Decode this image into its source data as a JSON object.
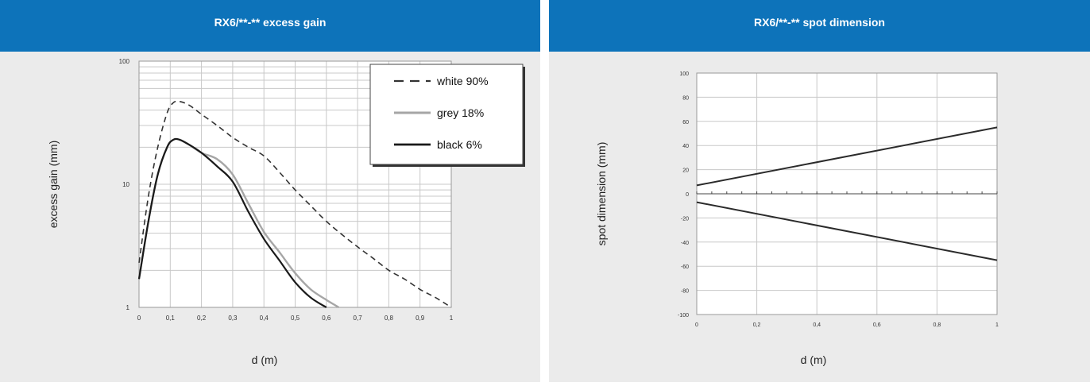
{
  "colors": {
    "header_bg": "#0d73ba",
    "header_text": "#ffffff",
    "panel_bg": "#ebebeb",
    "plot_bg": "#ffffff",
    "grid": "#c8c8c8",
    "white_90": "#333333",
    "grey_18": "#a6a6a6",
    "black_6": "#1a1a1a"
  },
  "chart_data": [
    {
      "type": "line",
      "title": "RX6/**-** excess gain",
      "xlabel": "d (m)",
      "ylabel": "excess gain (mm)",
      "yscale": "log",
      "xlim": [
        0,
        1
      ],
      "ylim": [
        1,
        100
      ],
      "x_ticks": [
        "0",
        "0,1",
        "0,2",
        "0,3",
        "0,4",
        "0,5",
        "0,6",
        "0,7",
        "0,8",
        "0,9",
        "1"
      ],
      "y_ticks": [
        "1",
        "10",
        "100"
      ],
      "legend_position": "top-right",
      "series": [
        {
          "name": "white 90%",
          "style": "dashed",
          "x": [
            0,
            0.03,
            0.06,
            0.09,
            0.11,
            0.13,
            0.16,
            0.2,
            0.25,
            0.3,
            0.35,
            0.4,
            0.45,
            0.5,
            0.55,
            0.6,
            0.65,
            0.7,
            0.75,
            0.8,
            0.85,
            0.9,
            0.95,
            1.0
          ],
          "y": [
            2.3,
            8,
            20,
            38,
            46,
            47,
            44,
            37,
            30,
            24,
            20,
            17,
            12.5,
            9,
            6.7,
            5,
            3.9,
            3.1,
            2.5,
            2.0,
            1.7,
            1.4,
            1.2,
            1.0
          ]
        },
        {
          "name": "grey 18%",
          "style": "solid",
          "x": [
            0,
            0.03,
            0.06,
            0.09,
            0.11,
            0.13,
            0.16,
            0.2,
            0.25,
            0.3,
            0.35,
            0.4,
            0.45,
            0.5,
            0.55,
            0.6,
            0.64
          ],
          "y": [
            1.7,
            5,
            12,
            20,
            23,
            23,
            21,
            18,
            16,
            12,
            7,
            4.1,
            2.8,
            1.9,
            1.4,
            1.15,
            1.0
          ]
        },
        {
          "name": "black 6%",
          "style": "solid",
          "x": [
            0,
            0.03,
            0.06,
            0.09,
            0.11,
            0.13,
            0.16,
            0.2,
            0.25,
            0.3,
            0.35,
            0.4,
            0.45,
            0.5,
            0.55,
            0.6
          ],
          "y": [
            1.7,
            5,
            12,
            20,
            23,
            23,
            21,
            18,
            14,
            10.5,
            6,
            3.6,
            2.4,
            1.6,
            1.2,
            1.0
          ]
        }
      ]
    },
    {
      "type": "line",
      "title": "RX6/**-** spot dimension",
      "xlabel": "d (m)",
      "ylabel": "spot dimension (mm)",
      "xlim": [
        0,
        1
      ],
      "ylim": [
        -100,
        100
      ],
      "x_ticks": [
        "0",
        "0,2",
        "0,4",
        "0,6",
        "0,8",
        "1"
      ],
      "y_ticks": [
        "100",
        "80",
        "60",
        "40",
        "20",
        "0",
        "-20",
        "-40",
        "-60",
        "-80",
        "-100"
      ],
      "series": [
        {
          "x": [
            0,
            1
          ],
          "y": [
            7,
            55
          ]
        },
        {
          "x": [
            0,
            1
          ],
          "y": [
            -7,
            -55
          ]
        }
      ]
    }
  ]
}
